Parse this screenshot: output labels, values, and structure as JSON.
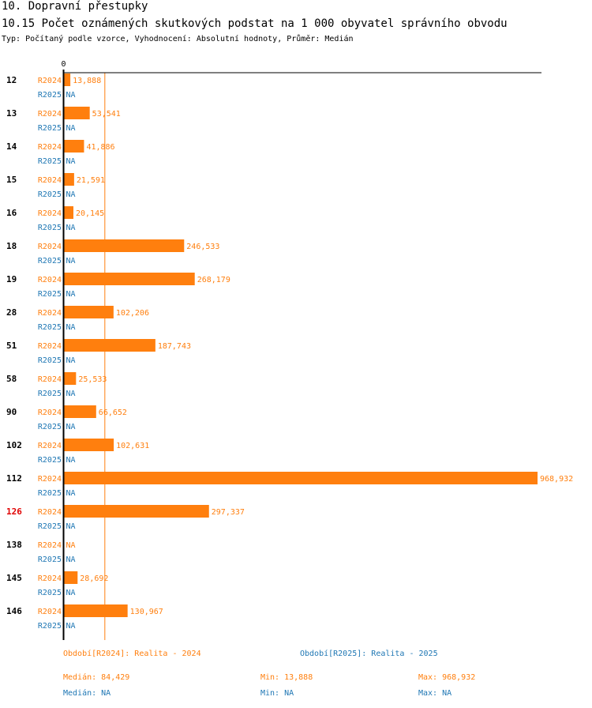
{
  "header": {
    "section": "10. Dopravní přestupky",
    "indicator": "10.15 Počet oznámených skutkových podstat na 1 000 obyvatel správního obvodu",
    "type_line": "Typ: Počítaný podle vzorce, Vyhodnocení: Absolutní hodnoty, Průměr: Medián"
  },
  "colors": {
    "r2024": "#ff7f0e",
    "r2025": "#1f77b4",
    "highlight": "#e00000",
    "axis": "#000000"
  },
  "chart_data": {
    "type": "bar",
    "orientation": "horizontal",
    "xlim": [
      0,
      968.932
    ],
    "x_tick_label": "0",
    "median_line_value": 84.429,
    "highlighted_category": "126",
    "categories": [
      "12",
      "13",
      "14",
      "15",
      "16",
      "18",
      "19",
      "28",
      "51",
      "58",
      "90",
      "102",
      "112",
      "126",
      "138",
      "145",
      "146"
    ],
    "series": [
      {
        "name": "R2024",
        "values": [
          13.888,
          53.541,
          41.886,
          21.591,
          20.145,
          246.533,
          268.179,
          102.206,
          187.743,
          25.533,
          66.652,
          102.631,
          968.932,
          297.337,
          null,
          28.692,
          130.967
        ],
        "labels": [
          "13,888",
          "53,541",
          "41,886",
          "21,591",
          "20,145",
          "246,533",
          "268,179",
          "102,206",
          "187,743",
          "25,533",
          "66,652",
          "102,631",
          "968,932",
          "297,337",
          "NA",
          "28,692",
          "130,967"
        ]
      },
      {
        "name": "R2025",
        "values": [
          null,
          null,
          null,
          null,
          null,
          null,
          null,
          null,
          null,
          null,
          null,
          null,
          null,
          null,
          null,
          null,
          null
        ],
        "labels": [
          "NA",
          "NA",
          "NA",
          "NA",
          "NA",
          "NA",
          "NA",
          "NA",
          "NA",
          "NA",
          "NA",
          "NA",
          "NA",
          "NA",
          "NA",
          "NA",
          "NA"
        ]
      }
    ]
  },
  "footer": {
    "period_2024": "Období[R2024]: Realita - 2024",
    "period_2025": "Období[R2025]: Realita - 2025",
    "median_2024": "Medián: 84,429",
    "min_2024": "Min: 13,888",
    "max_2024": "Max: 968,932",
    "median_2025": "Medián: NA",
    "min_2025": "Min: NA",
    "max_2025": "Max: NA"
  }
}
